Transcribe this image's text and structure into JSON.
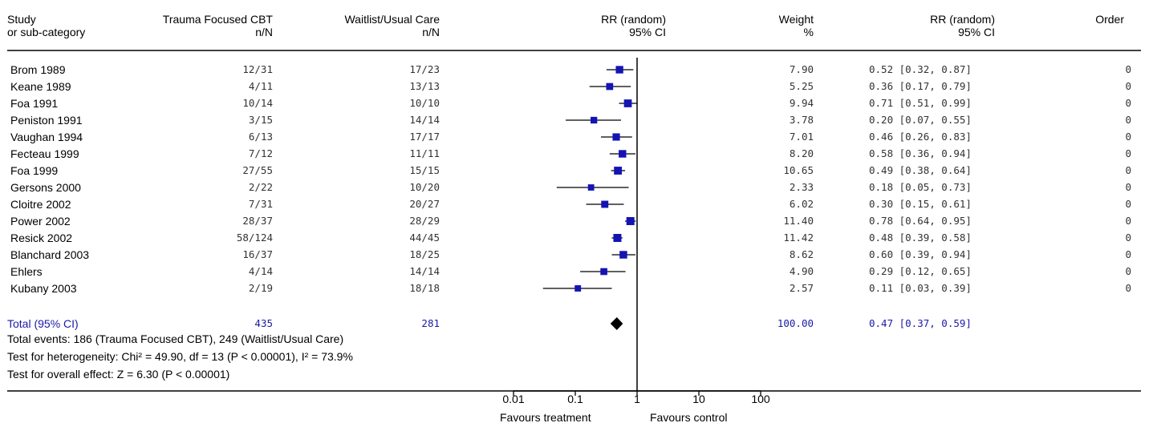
{
  "headers": {
    "study": [
      "Study",
      "or sub-category"
    ],
    "treatment": [
      "Trauma Focused CBT",
      "n/N"
    ],
    "control": [
      "Waitlist/Usual Care",
      "n/N"
    ],
    "rr_plot": [
      "RR (random)",
      "95% CI"
    ],
    "weight": [
      "Weight",
      "%"
    ],
    "rr_ci": [
      "RR (random)",
      "95% CI"
    ],
    "order": [
      "",
      "Order"
    ]
  },
  "rows": [
    {
      "study": "Brom 1989",
      "treat": "12/31",
      "ctrl": "17/23",
      "weight": "7.90",
      "ci_text": "0.52 [0.32, 0.87]",
      "order": "0"
    },
    {
      "study": "Keane 1989",
      "treat": "4/11",
      "ctrl": "13/13",
      "weight": "5.25",
      "ci_text": "0.36 [0.17, 0.79]",
      "order": "0"
    },
    {
      "study": "Foa 1991",
      "treat": "10/14",
      "ctrl": "10/10",
      "weight": "9.94",
      "ci_text": "0.71 [0.51, 0.99]",
      "order": "0"
    },
    {
      "study": "Peniston 1991",
      "treat": "3/15",
      "ctrl": "14/14",
      "weight": "3.78",
      "ci_text": "0.20 [0.07, 0.55]",
      "order": "0"
    },
    {
      "study": "Vaughan 1994",
      "treat": "6/13",
      "ctrl": "17/17",
      "weight": "7.01",
      "ci_text": "0.46 [0.26, 0.83]",
      "order": "0"
    },
    {
      "study": "Fecteau 1999",
      "treat": "7/12",
      "ctrl": "11/11",
      "weight": "8.20",
      "ci_text": "0.58 [0.36, 0.94]",
      "order": "0"
    },
    {
      "study": "Foa 1999",
      "treat": "27/55",
      "ctrl": "15/15",
      "weight": "10.65",
      "ci_text": "0.49 [0.38, 0.64]",
      "order": "0"
    },
    {
      "study": "Gersons 2000",
      "treat": "2/22",
      "ctrl": "10/20",
      "weight": "2.33",
      "ci_text": "0.18 [0.05, 0.73]",
      "order": "0"
    },
    {
      "study": "Cloitre 2002",
      "treat": "7/31",
      "ctrl": "20/27",
      "weight": "6.02",
      "ci_text": "0.30 [0.15, 0.61]",
      "order": "0"
    },
    {
      "study": "Power 2002",
      "treat": "28/37",
      "ctrl": "28/29",
      "weight": "11.40",
      "ci_text": "0.78 [0.64, 0.95]",
      "order": "0"
    },
    {
      "study": "Resick 2002",
      "treat": "58/124",
      "ctrl": "44/45",
      "weight": "11.42",
      "ci_text": "0.48 [0.39, 0.58]",
      "order": "0"
    },
    {
      "study": "Blanchard 2003",
      "treat": "16/37",
      "ctrl": "18/25",
      "weight": "8.62",
      "ci_text": "0.60 [0.39, 0.94]",
      "order": "0"
    },
    {
      "study": "Ehlers",
      "treat": "4/14",
      "ctrl": "14/14",
      "weight": "4.90",
      "ci_text": "0.29 [0.12, 0.65]",
      "order": "0"
    },
    {
      "study": "Kubany 2003",
      "treat": "2/19",
      "ctrl": "18/18",
      "weight": "2.57",
      "ci_text": "0.11 [0.03, 0.39]",
      "order": "0"
    }
  ],
  "total": {
    "label": "Total (95% CI)",
    "treat": "435",
    "ctrl": "281",
    "weight": "100.00",
    "ci_text": "0.47 [0.37, 0.59]"
  },
  "footnotes": [
    "Total events: 186 (Trauma Focused CBT), 249 (Waitlist/Usual Care)",
    "Test for heterogeneity: Chi² = 49.90, df = 13 (P < 0.00001), I² = 73.9%",
    "Test for overall effect: Z = 6.30 (P < 0.00001)"
  ],
  "axis": {
    "ticks": [
      0.01,
      0.1,
      1,
      10,
      100
    ],
    "tick_labels": [
      "0.01",
      "0.1",
      "1",
      "10",
      "100"
    ],
    "favours_left": "Favours treatment",
    "favours_right": "Favours control"
  },
  "colors": {
    "marker": "#1414b4",
    "total_text": "#1a1aa6",
    "diamond": "#000000"
  },
  "chart_data": {
    "type": "scatter",
    "x_scale": "log",
    "xlim": [
      0.01,
      100
    ],
    "categories": [
      "Brom 1989",
      "Keane 1989",
      "Foa 1991",
      "Peniston 1991",
      "Vaughan 1994",
      "Fecteau 1999",
      "Foa 1999",
      "Gersons 2000",
      "Cloitre 2002",
      "Power 2002",
      "Resick 2002",
      "Blanchard 2003",
      "Ehlers",
      "Kubany 2003"
    ],
    "rr": [
      0.52,
      0.36,
      0.71,
      0.2,
      0.46,
      0.58,
      0.49,
      0.18,
      0.3,
      0.78,
      0.48,
      0.6,
      0.29,
      0.11
    ],
    "ci_low": [
      0.32,
      0.17,
      0.51,
      0.07,
      0.26,
      0.36,
      0.38,
      0.05,
      0.15,
      0.64,
      0.39,
      0.39,
      0.12,
      0.03
    ],
    "ci_high": [
      0.87,
      0.79,
      0.99,
      0.55,
      0.83,
      0.94,
      0.64,
      0.73,
      0.61,
      0.95,
      0.58,
      0.94,
      0.65,
      0.39
    ],
    "weights": [
      7.9,
      5.25,
      9.94,
      3.78,
      7.01,
      8.2,
      10.65,
      2.33,
      6.02,
      11.4,
      11.42,
      8.62,
      4.9,
      2.57
    ],
    "pooled": {
      "rr": 0.47,
      "ci_low": 0.37,
      "ci_high": 0.59
    }
  }
}
